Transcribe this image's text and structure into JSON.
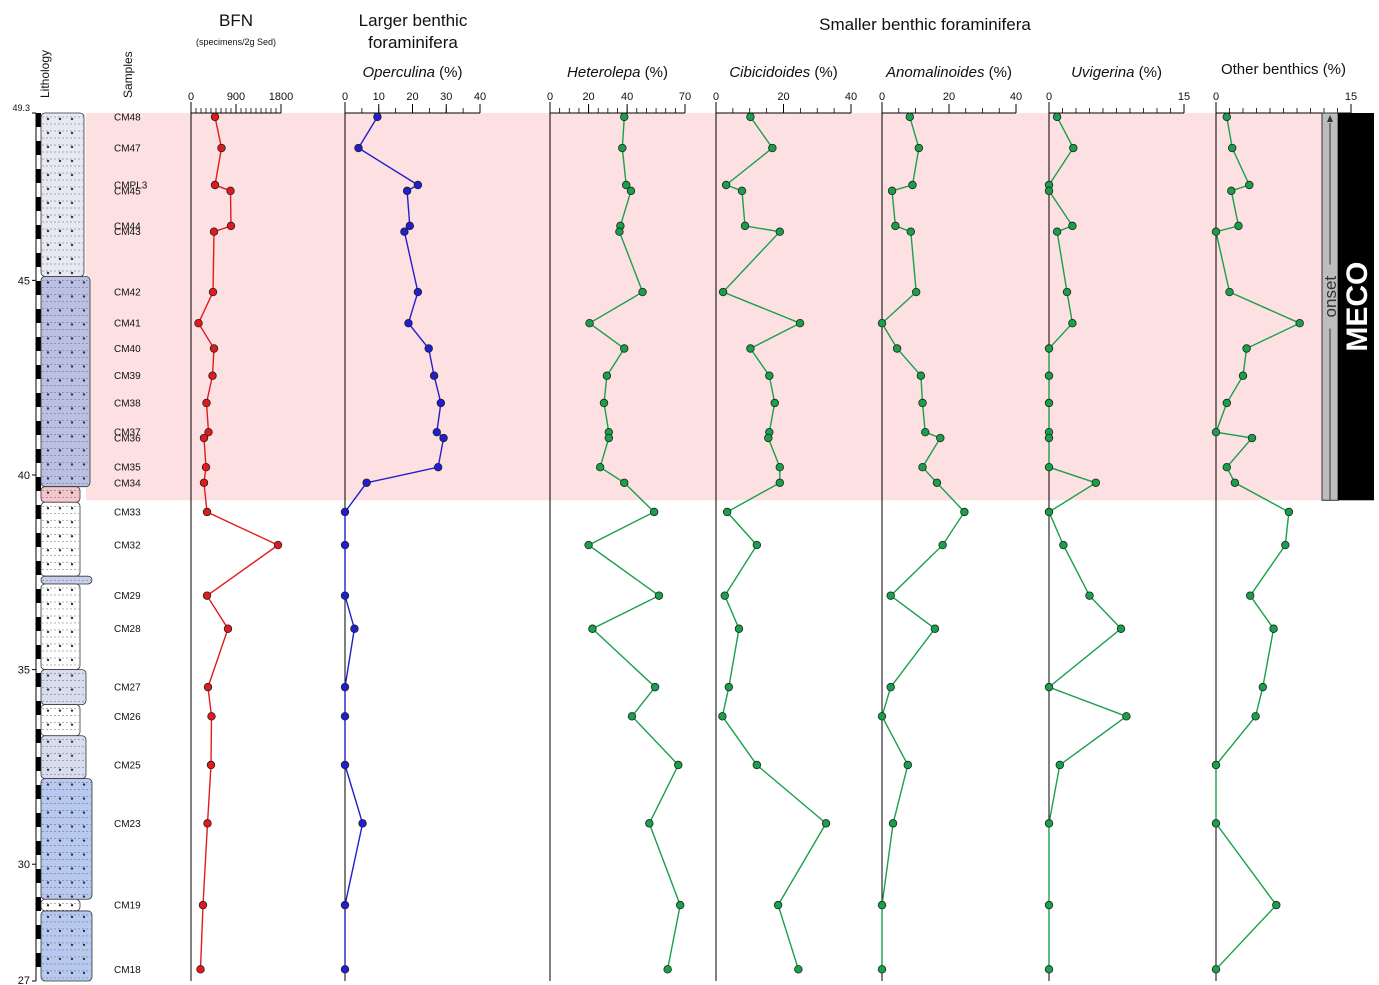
{
  "chart_data": {
    "type": "line",
    "orientation": "vertical-depth",
    "depth_axis": {
      "range": [
        27,
        49.3
      ],
      "tick_labels": [
        "49.3",
        "45",
        "40",
        "35",
        "30",
        "27"
      ],
      "ticks": [
        49.3,
        45,
        40,
        35,
        30,
        27
      ]
    },
    "meco": {
      "interval": [
        39.35,
        49.3
      ],
      "label": "MECO",
      "onset_label": "onset",
      "highlight_color": "#fde0e2"
    },
    "headers": {
      "lithology": "Lithology",
      "samples": "Samples",
      "bfn_title": "BFN",
      "bfn_subtitle": "(specimens/2g Sed)",
      "larger_title_1": "Larger benthic",
      "larger_title_2": "foraminifera",
      "smaller_title": "Smaller benthic foraminifera"
    },
    "samples": [
      {
        "name": "CM48",
        "depth": 49.2
      },
      {
        "name": "CM47",
        "depth": 48.4
      },
      {
        "name": "CMPL3",
        "depth": 47.45
      },
      {
        "name": "CM45",
        "depth": 47.3
      },
      {
        "name": "CM44",
        "depth": 46.4
      },
      {
        "name": "CM43",
        "depth": 46.25
      },
      {
        "name": "CM42",
        "depth": 44.7
      },
      {
        "name": "CM41",
        "depth": 43.9
      },
      {
        "name": "CM40",
        "depth": 43.25
      },
      {
        "name": "CM39",
        "depth": 42.55
      },
      {
        "name": "CM38",
        "depth": 41.85
      },
      {
        "name": "CM37",
        "depth": 41.1
      },
      {
        "name": "CM36",
        "depth": 40.95
      },
      {
        "name": "CM35",
        "depth": 40.2
      },
      {
        "name": "CM34",
        "depth": 39.8
      },
      {
        "name": "CM33",
        "depth": 39.05
      },
      {
        "name": "CM32",
        "depth": 38.2
      },
      {
        "name": "CM29",
        "depth": 36.9
      },
      {
        "name": "CM28",
        "depth": 36.05
      },
      {
        "name": "CM27",
        "depth": 34.55
      },
      {
        "name": "CM26",
        "depth": 33.8
      },
      {
        "name": "CM25",
        "depth": 32.55
      },
      {
        "name": "CM23",
        "depth": 31.05
      },
      {
        "name": "CM19",
        "depth": 28.95
      },
      {
        "name": "CM18",
        "depth": 27.3
      }
    ],
    "series": [
      {
        "id": "bfn",
        "label_main": "",
        "label_italic": "",
        "label_suffix": "",
        "color": "#e31a1c",
        "xlim": [
          0,
          1800
        ],
        "tick_labels": [
          "0",
          "900",
          "1800"
        ],
        "tick_values": [
          0,
          900,
          1800
        ],
        "minor_step": 100,
        "depths": [
          49.2,
          48.4,
          47.45,
          47.3,
          46.4,
          46.25,
          44.7,
          43.9,
          43.25,
          42.55,
          41.85,
          41.1,
          40.95,
          40.2,
          39.8,
          39.05,
          38.2,
          36.9,
          36.05,
          34.55,
          33.8,
          32.55,
          31.05,
          28.95,
          27.3
        ],
        "values": [
          480,
          610,
          480,
          790,
          800,
          460,
          440,
          150,
          460,
          430,
          310,
          350,
          260,
          300,
          260,
          320,
          1740,
          320,
          740,
          340,
          410,
          400,
          330,
          240,
          190
        ]
      },
      {
        "id": "operculina",
        "label_main": "",
        "label_italic": "Operculina",
        "label_suffix": " (%)",
        "color": "#1f1fd0",
        "xlim": [
          0,
          40
        ],
        "tick_labels": [
          "0",
          "10",
          "20",
          "30",
          "40"
        ],
        "tick_values": [
          0,
          10,
          20,
          30,
          40
        ],
        "minor_step": 5,
        "depths": [
          49.2,
          48.4,
          47.45,
          47.3,
          46.4,
          46.25,
          44.7,
          43.9,
          43.25,
          42.55,
          41.85,
          41.1,
          40.95,
          40.2,
          39.8,
          39.05,
          38.2,
          36.9,
          36.05,
          34.55,
          33.8,
          32.55,
          31.05,
          28.95,
          27.3
        ],
        "values": [
          9.6,
          4.0,
          21.6,
          18.4,
          19.2,
          17.6,
          21.6,
          18.8,
          24.8,
          26.4,
          28.4,
          27.2,
          29.2,
          27.6,
          6.4,
          0.0,
          0.0,
          0.0,
          2.8,
          0.0,
          0.0,
          0.0,
          5.2,
          0.0,
          0.0
        ]
      },
      {
        "id": "heterolepa",
        "label_main": "",
        "label_italic": "Heterolepa",
        "label_suffix": " (%)",
        "color": "#18a04a",
        "xlim": [
          0,
          70
        ],
        "tick_labels": [
          "0",
          "20",
          "40",
          "70"
        ],
        "tick_values": [
          0,
          20,
          40,
          70
        ],
        "minor_step": 5,
        "depths": [
          49.2,
          48.4,
          47.45,
          47.3,
          46.4,
          46.25,
          44.7,
          43.9,
          43.25,
          42.55,
          41.85,
          41.1,
          40.95,
          40.2,
          39.8,
          39.05,
          38.2,
          36.9,
          36.05,
          34.55,
          33.8,
          32.55,
          31.05,
          28.95,
          27.3
        ],
        "values": [
          38.5,
          37.5,
          39.5,
          42.0,
          36.5,
          36.0,
          48.0,
          20.5,
          38.5,
          29.5,
          28.0,
          30.5,
          30.5,
          26.0,
          38.5,
          54.0,
          20.0,
          56.5,
          22.0,
          54.5,
          42.5,
          66.5,
          51.5,
          67.5,
          61.0
        ]
      },
      {
        "id": "cibicidoides",
        "label_main": "",
        "label_italic": "Cibicidoides",
        "label_suffix": " (%)",
        "color": "#18a04a",
        "xlim": [
          0,
          40
        ],
        "tick_labels": [
          "0",
          "20",
          "40"
        ],
        "tick_values": [
          0,
          20,
          40
        ],
        "minor_step": 5,
        "depths": [
          49.2,
          48.4,
          47.45,
          47.3,
          46.4,
          46.25,
          44.7,
          43.9,
          43.25,
          42.55,
          41.85,
          41.1,
          40.95,
          40.2,
          39.8,
          39.05,
          38.2,
          36.9,
          36.05,
          34.55,
          33.8,
          32.55,
          31.05,
          28.95,
          27.3
        ],
        "values": [
          10.2,
          16.7,
          3.0,
          7.7,
          8.6,
          18.9,
          2.1,
          24.9,
          10.2,
          15.8,
          17.4,
          15.8,
          15.5,
          18.9,
          18.9,
          3.3,
          12.1,
          2.6,
          6.8,
          3.8,
          1.9,
          12.1,
          32.6,
          18.4,
          24.4
        ]
      },
      {
        "id": "anomalinoides",
        "label_main": "",
        "label_italic": "Anomalinoides",
        "label_suffix": " (%)",
        "color": "#18a04a",
        "xlim": [
          0,
          40
        ],
        "tick_labels": [
          "0",
          "20",
          "40"
        ],
        "tick_values": [
          0,
          20,
          40
        ],
        "minor_step": 5,
        "depths": [
          49.2,
          48.4,
          47.45,
          47.3,
          46.4,
          46.25,
          44.7,
          43.9,
          43.25,
          42.55,
          41.85,
          41.1,
          40.95,
          40.2,
          39.8,
          39.05,
          38.2,
          36.9,
          36.05,
          34.55,
          33.8,
          32.55,
          31.05,
          28.95,
          27.3
        ],
        "values": [
          8.3,
          11.0,
          9.1,
          3.0,
          4.0,
          8.6,
          10.2,
          0.0,
          4.5,
          11.6,
          12.1,
          12.9,
          17.4,
          12.1,
          16.4,
          24.6,
          18.1,
          2.6,
          15.8,
          2.6,
          0.0,
          7.7,
          3.3,
          0.0,
          0.0
        ]
      },
      {
        "id": "uvigerina",
        "label_main": "",
        "label_italic": "Uvigerina",
        "label_suffix": " (%)",
        "color": "#18a04a",
        "xlim": [
          0,
          15
        ],
        "tick_labels": [
          "0",
          "15"
        ],
        "tick_values": [
          0,
          15
        ],
        "minor_step": 1.5,
        "depths": [
          49.2,
          48.4,
          47.45,
          47.3,
          46.4,
          46.25,
          44.7,
          43.9,
          43.25,
          42.55,
          41.85,
          41.1,
          40.95,
          40.2,
          39.8,
          39.05,
          38.2,
          36.9,
          36.05,
          34.55,
          33.8,
          32.55,
          31.05,
          28.95,
          27.3
        ],
        "values": [
          0.9,
          2.7,
          0.0,
          0.0,
          2.6,
          0.9,
          2.0,
          2.6,
          0.0,
          0.0,
          0.0,
          0.0,
          0.0,
          0.0,
          5.2,
          0.0,
          1.6,
          4.5,
          8.0,
          0.0,
          8.6,
          1.2,
          0.0,
          0.0,
          0.0
        ]
      },
      {
        "id": "other",
        "label_main": "Other benthics (%)",
        "label_italic": "",
        "label_suffix": "",
        "color": "#18a04a",
        "xlim": [
          0,
          15
        ],
        "tick_labels": [
          "0",
          "15"
        ],
        "tick_values": [
          0,
          15
        ],
        "minor_step": 1.5,
        "depths": [
          49.2,
          48.4,
          47.45,
          47.3,
          46.4,
          46.25,
          44.7,
          43.9,
          43.25,
          42.55,
          41.85,
          41.1,
          40.95,
          40.2,
          39.8,
          39.05,
          38.2,
          36.9,
          36.05,
          34.55,
          33.8,
          32.55,
          31.05,
          28.95,
          27.3
        ],
        "values": [
          1.2,
          1.8,
          3.7,
          1.7,
          2.5,
          0.0,
          1.5,
          9.3,
          3.4,
          3.0,
          1.2,
          0.0,
          4.0,
          1.2,
          2.1,
          8.1,
          7.7,
          3.8,
          6.4,
          5.2,
          4.4,
          0.0,
          0.0,
          6.7,
          0.0
        ]
      }
    ]
  }
}
